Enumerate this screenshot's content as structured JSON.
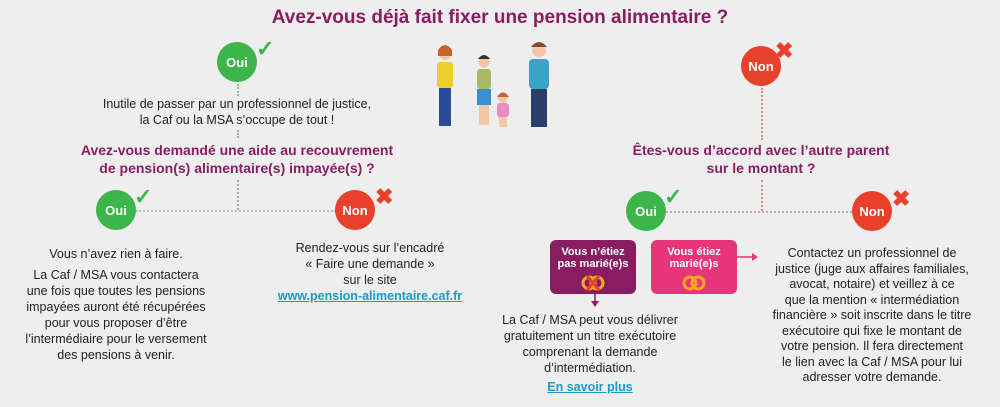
{
  "title": "Avez-vous déjà fait fixer une pension alimentaire ?",
  "colors": {
    "title": "#8a1d62",
    "yes": "#3cb54a",
    "no": "#e8402a",
    "not_married_box": "#8a1d62",
    "married_box": "#e8357a",
    "link": "#1a9cc9"
  },
  "left": {
    "answer": "Oui",
    "icon": "check-icon",
    "text": [
      "Inutile de passer par un professionnel de justice,",
      "la Caf ou la MSA s’occupe de tout !"
    ],
    "question": [
      "Avez-vous demandé une aide au recouvrement",
      "de pension(s) alimentaire(s) impayée(s) ?"
    ],
    "yes": {
      "answer": "Oui",
      "title": "Vous n’avez rien à faire.",
      "text": [
        "La Caf / MSA vous contactera",
        "une fois que toutes les pensions",
        "impayées auront été récupérées",
        "pour vous proposer d’être",
        "l’intermédiaire pour le versement",
        "des pensions à venir."
      ]
    },
    "no": {
      "answer": "Non",
      "text": [
        "Rendez-vous sur l’encadré",
        "« Faire une demande »",
        "sur le site"
      ],
      "link": "www.pension-alimentaire.caf.fr"
    }
  },
  "right": {
    "answer": "Non",
    "icon": "cross-icon",
    "question": [
      "Êtes-vous d’accord avec l’autre parent",
      "sur le montant ?"
    ],
    "yes": {
      "answer": "Oui",
      "not_married": [
        "Vous n’étiez",
        "pas marié(e)s"
      ],
      "married": [
        "Vous étiez",
        "marié(e)s"
      ],
      "text": [
        "La Caf / MSA peut vous délivrer",
        "gratuitement un titre exécutoire",
        "comprenant la demande",
        "d’intermédiation."
      ],
      "link": "En savoir plus"
    },
    "no": {
      "answer": "Non",
      "text": [
        "Contactez un professionnel de",
        "justice (juge aux affaires familiales,",
        "avocat, notaire) et veillez à ce",
        "que la mention « intermédiation",
        "financière » soit inscrite dans le titre",
        "exécutoire qui fixe le montant de",
        "votre pension. Il fera directement",
        "le lien avec la Caf / MSA pour lui",
        "adresser votre demande."
      ]
    }
  }
}
